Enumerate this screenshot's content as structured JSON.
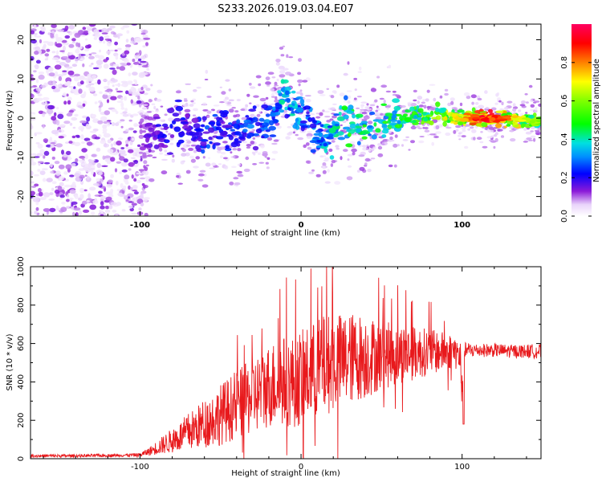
{
  "title": "S233.2026.019.03.04.E07",
  "colors": {
    "snr_line": "#e8191c",
    "axis": "#000000",
    "background": "#ffffff"
  },
  "chart_data": [
    {
      "type": "heatmap",
      "xlabel": "Height of straight line (km)",
      "ylabel": "Frequency (Hz)",
      "xlim": [
        -168,
        149
      ],
      "ylim": [
        -25,
        24
      ],
      "xticks": [
        -100,
        0,
        100
      ],
      "xtick_labels": [
        "-100",
        "0",
        "100"
      ],
      "yticks": [
        20,
        10,
        0,
        -10,
        -20
      ],
      "ytick_labels": [
        "20",
        "10",
        "0",
        "-10",
        "-20"
      ],
      "colorbar": {
        "label": "Normalized spectral amplitude",
        "range": [
          0,
          1
        ],
        "ticks": [
          0.0,
          0.2,
          0.4,
          0.6,
          0.8
        ],
        "tick_labels": [
          "0.0",
          "0.2",
          "0.4",
          "0.6",
          "0.8"
        ],
        "colormap": "rainbow"
      },
      "ridge": {
        "x": [
          -100,
          -92,
          -85,
          -78,
          -70,
          -62,
          -55,
          -48,
          -40,
          -32,
          -25,
          -18,
          -14,
          -11,
          -9,
          -6,
          -2,
          2,
          6,
          10,
          15,
          20,
          27,
          33,
          40,
          47,
          55,
          62,
          70,
          80,
          90,
          100,
          110,
          120,
          130,
          140,
          148
        ],
        "freq": [
          -4,
          -3,
          -5,
          -2,
          -3,
          -4,
          -3,
          -2,
          -5,
          -3,
          -2,
          0,
          3,
          9,
          4,
          5,
          3,
          0,
          -2,
          -4,
          -5,
          -3,
          -1,
          -2,
          -3,
          -2,
          0,
          -1,
          1,
          0,
          1,
          0,
          0,
          0,
          0,
          -0.5,
          -1
        ],
        "amplitude": [
          0.12,
          0.18,
          0.22,
          0.25,
          0.22,
          0.25,
          0.28,
          0.22,
          0.3,
          0.3,
          0.28,
          0.32,
          0.4,
          0.45,
          0.35,
          0.42,
          0.4,
          0.3,
          0.32,
          0.35,
          0.4,
          0.42,
          0.48,
          0.5,
          0.48,
          0.45,
          0.55,
          0.5,
          0.58,
          0.62,
          0.7,
          0.72,
          0.92,
          0.9,
          0.82,
          0.7,
          0.6
        ]
      }
    },
    {
      "type": "line",
      "xlabel": "Height of straight line (km)",
      "ylabel": "SNR (10 * v/v)",
      "xlim": [
        -168,
        149
      ],
      "ylim": [
        0,
        1000
      ],
      "xticks": [
        -100,
        0,
        100
      ],
      "xtick_labels": [
        "-100",
        "0",
        "100"
      ],
      "yticks": [
        0,
        200,
        400,
        600,
        800,
        1000
      ],
      "ytick_labels": [
        "0",
        "200",
        "400",
        "600",
        "800",
        "1000"
      ],
      "series": [
        {
          "name": "SNR",
          "envelope_x": [
            -168,
            -140,
            -110,
            -100,
            -95,
            -90,
            -85,
            -80,
            -75,
            -70,
            -65,
            -60,
            -55,
            -50,
            -45,
            -40,
            -35,
            -30,
            -25,
            -20,
            -15,
            -10,
            -5,
            0,
            5,
            10,
            15,
            20,
            25,
            30,
            35,
            40,
            45,
            50,
            55,
            60,
            65,
            70,
            75,
            80,
            85,
            90,
            95,
            98,
            100,
            101,
            102,
            105,
            110,
            120,
            130,
            140,
            149
          ],
          "envelope_mean": [
            15,
            15,
            18,
            20,
            35,
            55,
            75,
            95,
            115,
            140,
            160,
            185,
            205,
            230,
            255,
            280,
            300,
            330,
            350,
            380,
            395,
            405,
            400,
            420,
            440,
            470,
            490,
            500,
            510,
            520,
            530,
            530,
            535,
            540,
            540,
            545,
            550,
            550,
            555,
            555,
            555,
            560,
            560,
            540,
            420,
            560,
            565,
            565,
            565,
            565,
            560,
            560,
            560
          ],
          "envelope_amp": [
            8,
            8,
            8,
            10,
            20,
            35,
            50,
            65,
            80,
            100,
            110,
            130,
            140,
            160,
            170,
            180,
            190,
            200,
            210,
            220,
            230,
            240,
            240,
            250,
            250,
            260,
            260,
            260,
            250,
            240,
            230,
            220,
            200,
            180,
            170,
            160,
            150,
            140,
            130,
            120,
            110,
            100,
            90,
            90,
            200,
            40,
            40,
            40,
            35,
            35,
            35,
            35,
            40
          ]
        }
      ]
    }
  ]
}
